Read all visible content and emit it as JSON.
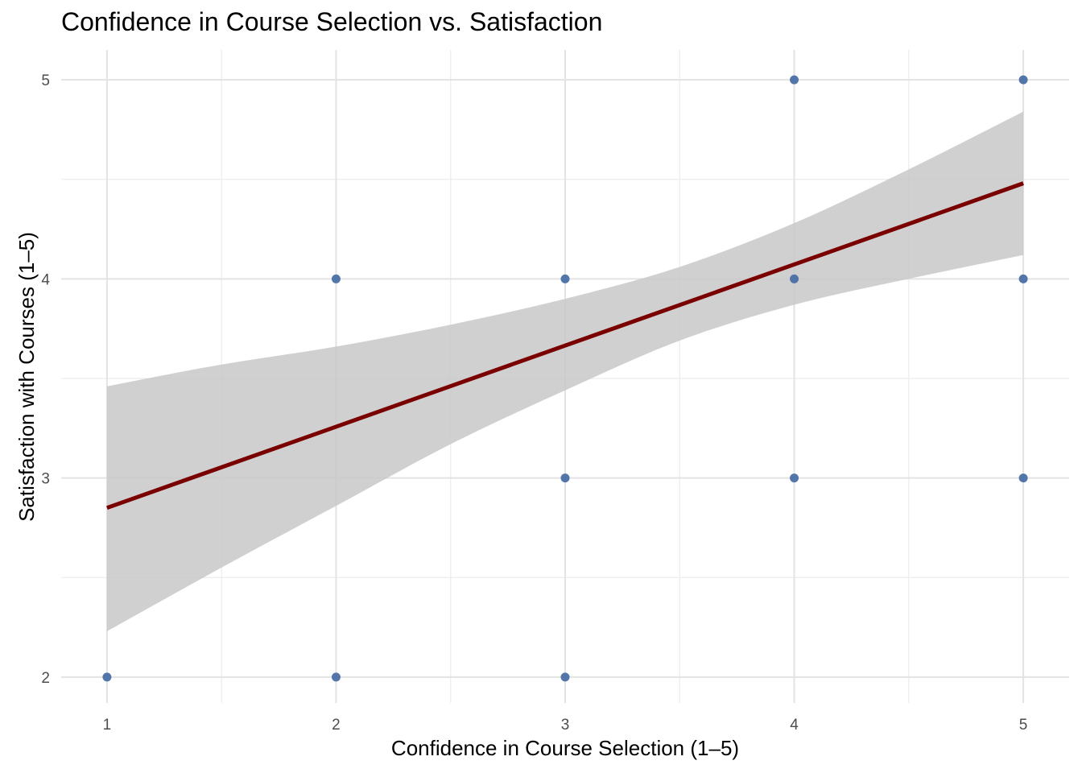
{
  "chart_data": {
    "type": "scatter",
    "title": "Confidence in Course Selection vs. Satisfaction",
    "xlabel": "Confidence in Course Selection (1–5)",
    "ylabel": "Satisfaction with Courses (1–5)",
    "xlim": [
      0.8,
      5.2
    ],
    "ylim": [
      1.87,
      5.15
    ],
    "x_ticks": [
      1,
      2,
      3,
      4,
      5
    ],
    "y_ticks": [
      2,
      3,
      4,
      5
    ],
    "x_tick_labels": [
      "1",
      "2",
      "3",
      "4",
      "5"
    ],
    "y_tick_labels": [
      "2",
      "3",
      "4",
      "5"
    ],
    "grid": true,
    "legend": "none",
    "point_color": "#4a6fa5",
    "line_color": "#7a0000",
    "ribbon_color": "#c8c8c8",
    "points": [
      {
        "x": 1,
        "y": 2
      },
      {
        "x": 2,
        "y": 4
      },
      {
        "x": 2,
        "y": 2
      },
      {
        "x": 3,
        "y": 4
      },
      {
        "x": 3,
        "y": 3
      },
      {
        "x": 3,
        "y": 2
      },
      {
        "x": 4,
        "y": 5
      },
      {
        "x": 4,
        "y": 4
      },
      {
        "x": 4,
        "y": 3
      },
      {
        "x": 5,
        "y": 5
      },
      {
        "x": 5,
        "y": 4
      },
      {
        "x": 5,
        "y": 3
      }
    ],
    "fit": {
      "method": "linear",
      "x": [
        1,
        5
      ],
      "y": [
        2.85,
        4.48
      ]
    },
    "confidence_band": {
      "x": [
        1.0,
        1.5,
        2.0,
        2.5,
        3.0,
        3.5,
        4.0,
        4.5,
        5.0
      ],
      "lower": [
        2.23,
        2.55,
        2.86,
        3.17,
        3.44,
        3.69,
        3.87,
        4.0,
        4.12
      ],
      "upper": [
        3.46,
        3.57,
        3.66,
        3.77,
        3.9,
        4.06,
        4.28,
        4.55,
        4.84
      ]
    }
  }
}
